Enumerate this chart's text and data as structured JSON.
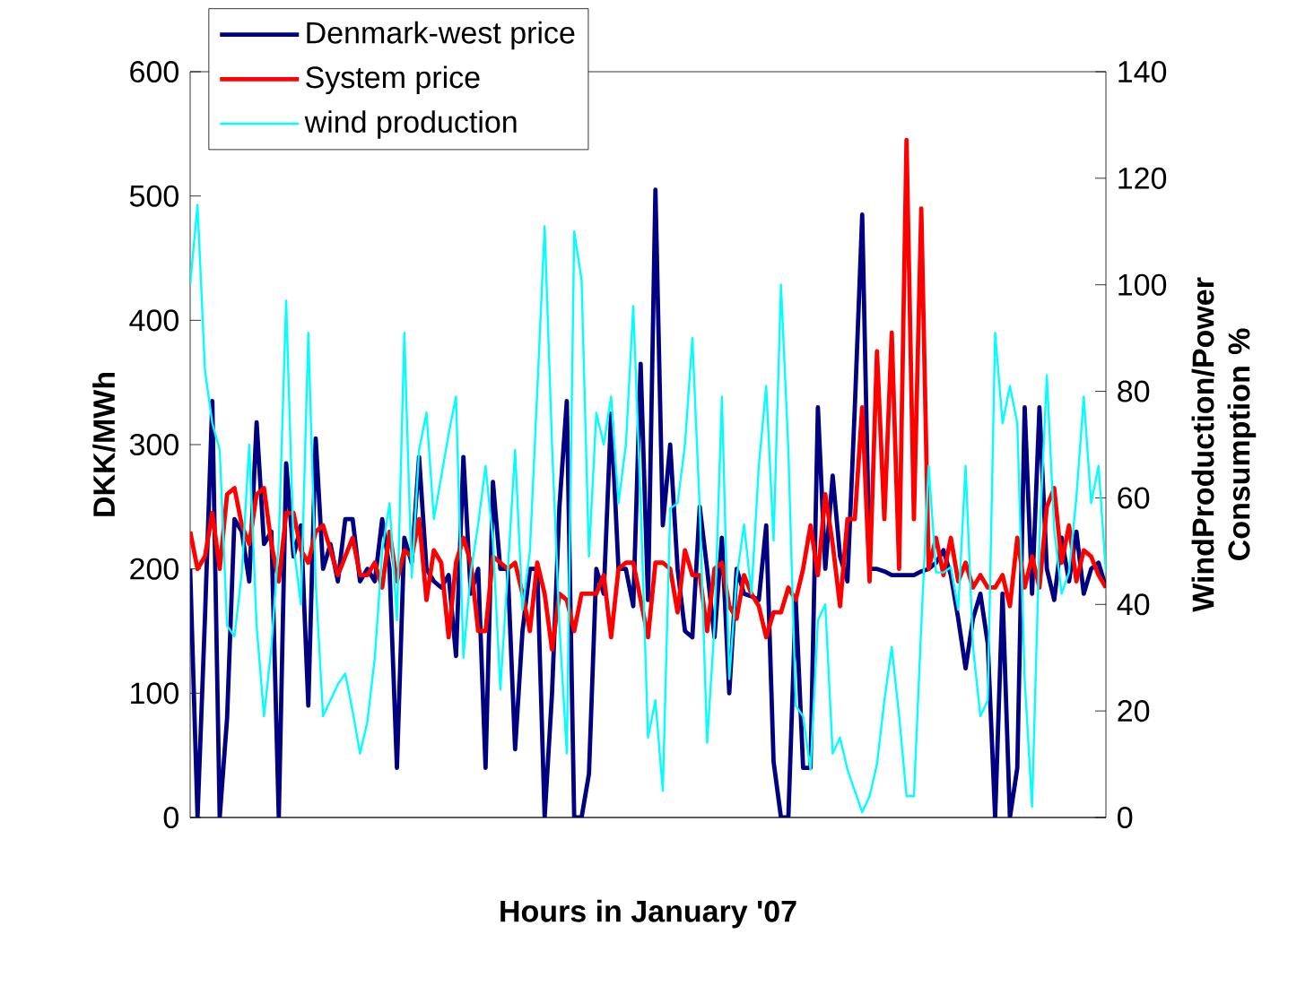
{
  "chart_data": {
    "type": "line",
    "xlabel": "Hours in January '07",
    "ylabel": "DKK/MWh",
    "y2label": "WindProduction/Power Consumption %",
    "categories": [
      null,
      null,
      null,
      null,
      null,
      null,
      null,
      null,
      null,
      null,
      null,
      null,
      null,
      null,
      null,
      null,
      null,
      null,
      null,
      null,
      null,
      null,
      null,
      null,
      null,
      null,
      null,
      null,
      null,
      null,
      null,
      null,
      null,
      null,
      null,
      null,
      null,
      null,
      null,
      null,
      null,
      null,
      null,
      null,
      null,
      null,
      null,
      null,
      null,
      null,
      null,
      null,
      null,
      null,
      null,
      null,
      null,
      null,
      null,
      null,
      null,
      null,
      null,
      null,
      null,
      null,
      null,
      null,
      null,
      null,
      null,
      null,
      null,
      null,
      null,
      null,
      null,
      null,
      null,
      null,
      null,
      null,
      null,
      null,
      null,
      null,
      null,
      null,
      null,
      null,
      null,
      null,
      null,
      null,
      null,
      null,
      null,
      null,
      null,
      null,
      null,
      null,
      null,
      null,
      null,
      null,
      null,
      null,
      null,
      null,
      null,
      null,
      null,
      null,
      null,
      null,
      null,
      null,
      null,
      null,
      null,
      null,
      null,
      null,
      null
    ],
    "ylim": [
      0,
      600
    ],
    "yticks": [
      0,
      100,
      200,
      300,
      400,
      500,
      600
    ],
    "y2lim": [
      0,
      140
    ],
    "y2ticks": [
      0,
      20,
      40,
      60,
      80,
      100,
      120,
      140
    ],
    "legend": "top left",
    "tick_labels": "y",
    "marker": "none",
    "line_style": "solid",
    "series": [
      {
        "name": "Denmark-west price",
        "color": "#000080",
        "axis": "y",
        "values": [
          200,
          0,
          160,
          335,
          0,
          80,
          240,
          230,
          190,
          318,
          220,
          230,
          0,
          285,
          210,
          235,
          90,
          305,
          200,
          220,
          190,
          240,
          240,
          190,
          200,
          190,
          240,
          200,
          40,
          225,
          205,
          290,
          200,
          190,
          185,
          195,
          130,
          290,
          180,
          200,
          40,
          270,
          200,
          200,
          55,
          150,
          200,
          200,
          0,
          100,
          250,
          335,
          0,
          0,
          35,
          200,
          180,
          325,
          200,
          200,
          170,
          365,
          175,
          505,
          235,
          300,
          200,
          150,
          145,
          250,
          200,
          145,
          225,
          100,
          200,
          180,
          178,
          175,
          235,
          45,
          0,
          0,
          175,
          40,
          40,
          330,
          200,
          275,
          210,
          190,
          330,
          485,
          200,
          200,
          198,
          195,
          195,
          195,
          195,
          198,
          200,
          205,
          215,
          195,
          160,
          120,
          160,
          180,
          140,
          0,
          180,
          0,
          40,
          330,
          180,
          330,
          200,
          175,
          225,
          190,
          230,
          180,
          200,
          205,
          185
        ]
      },
      {
        "name": "System price",
        "color": "#ff0000",
        "axis": "y",
        "values": [
          230,
          200,
          210,
          245,
          200,
          260,
          265,
          235,
          220,
          260,
          265,
          220,
          190,
          245,
          245,
          215,
          205,
          230,
          235,
          215,
          195,
          210,
          225,
          195,
          195,
          205,
          185,
          230,
          190,
          215,
          210,
          240,
          175,
          215,
          205,
          145,
          205,
          225,
          205,
          150,
          150,
          210,
          205,
          200,
          205,
          180,
          150,
          205,
          180,
          135,
          180,
          175,
          150,
          180,
          180,
          180,
          195,
          145,
          200,
          205,
          205,
          175,
          145,
          205,
          205,
          200,
          165,
          215,
          195,
          195,
          150,
          200,
          205,
          170,
          160,
          195,
          180,
          170,
          145,
          165,
          165,
          185,
          175,
          200,
          235,
          195,
          260,
          220,
          170,
          240,
          240,
          330,
          190,
          375,
          240,
          390,
          200,
          545,
          240,
          490,
          200,
          225,
          195,
          225,
          190,
          205,
          185,
          195,
          185,
          185,
          195,
          170,
          225,
          185,
          210,
          185,
          250,
          265,
          205,
          235,
          190,
          215,
          210,
          195,
          185
        ]
      },
      {
        "name": "wind production",
        "color": "#00ffff",
        "axis": "y2",
        "values": [
          100,
          115,
          84,
          74,
          69,
          36,
          34,
          46,
          70,
          36,
          19,
          32,
          52,
          97,
          51,
          40,
          91,
          44,
          19,
          22,
          25,
          27,
          20,
          12,
          18,
          30,
          50,
          59,
          37,
          91,
          45,
          69,
          76,
          56,
          64,
          72,
          79,
          30,
          46,
          55,
          66,
          52,
          24,
          46,
          69,
          39,
          50,
          80,
          111,
          70,
          36,
          12,
          110,
          101,
          49,
          76,
          70,
          79,
          59,
          70,
          96,
          59,
          15,
          22,
          5,
          58,
          59,
          70,
          90,
          58,
          14,
          36,
          79,
          26,
          45,
          55,
          42,
          66,
          81,
          52,
          100,
          69,
          21,
          19,
          9,
          37,
          40,
          12,
          15,
          9,
          5,
          1,
          4,
          10,
          22,
          32,
          19,
          4,
          4,
          36,
          66,
          46,
          46,
          47,
          39,
          66,
          32,
          19,
          22,
          91,
          74,
          81,
          74,
          26,
          2,
          52,
          83,
          54,
          42,
          46,
          60,
          79,
          59,
          66,
          46
        ]
      }
    ]
  }
}
